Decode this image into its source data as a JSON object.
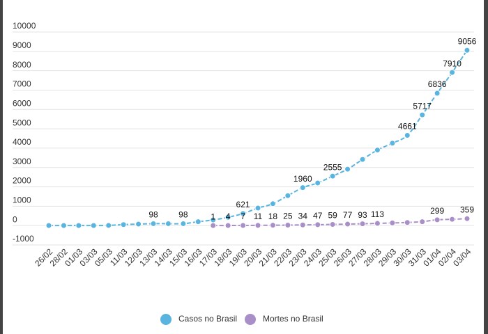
{
  "chart_data": {
    "type": "line",
    "categories": [
      "26/02",
      "28/02",
      "01/03",
      "03/03",
      "05/03",
      "11/03",
      "12/03",
      "13/03",
      "14/03",
      "15/03",
      "16/03",
      "17/03",
      "18/03",
      "19/03",
      "20/03",
      "21/03",
      "22/03",
      "23/03",
      "24/03",
      "25/03",
      "26/03",
      "27/03",
      "28/03",
      "29/03",
      "30/03",
      "31/03",
      "01/04",
      "02/04",
      "03/04"
    ],
    "series": [
      {
        "name": "Casos no Brasil",
        "color": "#5ab4e0",
        "values": [
          1,
          2,
          2,
          2,
          8,
          52,
          77,
          98,
          98,
          98,
          200,
          291,
          428,
          621,
          904,
          1128,
          1546,
          1960,
          2201,
          2555,
          2915,
          3417,
          3904,
          4256,
          4661,
          5717,
          6836,
          7910,
          9056
        ],
        "value_labels": [
          null,
          null,
          null,
          null,
          null,
          null,
          null,
          "98",
          null,
          "98",
          null,
          null,
          null,
          "621",
          null,
          null,
          null,
          "1960",
          null,
          "2555",
          null,
          null,
          null,
          null,
          "4661",
          "5717",
          "6836",
          "7910",
          "9056"
        ]
      },
      {
        "name": "Mortes no Brasil",
        "color": "#a88fc8",
        "values": [
          null,
          null,
          null,
          null,
          null,
          null,
          null,
          null,
          null,
          null,
          null,
          1,
          4,
          7,
          11,
          18,
          25,
          34,
          47,
          59,
          77,
          93,
          113,
          136,
          159,
          201,
          299,
          324,
          359
        ],
        "value_labels": [
          null,
          null,
          null,
          null,
          null,
          null,
          null,
          null,
          null,
          null,
          null,
          "1",
          "4",
          "7",
          "11",
          "18",
          "25",
          "34",
          "47",
          "59",
          "77",
          "93",
          "113",
          null,
          null,
          null,
          "299",
          null,
          "359"
        ]
      }
    ],
    "ylim": [
      -1000,
      10000
    ],
    "yticks": [
      -1000,
      0,
      1000,
      2000,
      3000,
      4000,
      5000,
      6000,
      7000,
      8000,
      9000,
      10000
    ],
    "grid": true,
    "legend": "bottom"
  }
}
